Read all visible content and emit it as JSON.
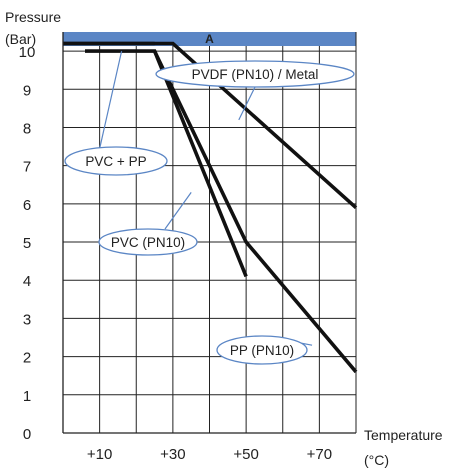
{
  "chart_data": {
    "type": "line",
    "title": "",
    "header_band_label": "A",
    "ylabel_line1": "Pressure",
    "ylabel_line2": "(Bar)",
    "xlabel_line1": "Temperature",
    "xlabel_line2": "(°C)",
    "xlim": [
      0,
      80
    ],
    "ylim": [
      0,
      10.5
    ],
    "x_ticks": [
      10,
      20,
      30,
      40,
      50,
      60,
      70
    ],
    "x_tick_labels": [
      "+10",
      "",
      "+30",
      "",
      "+50",
      "",
      "+70"
    ],
    "y_ticks": [
      0,
      1,
      2,
      3,
      4,
      5,
      6,
      7,
      8,
      9,
      10
    ],
    "y_tick_labels": [
      "0",
      "1",
      "2",
      "3",
      "4",
      "5",
      "6",
      "7",
      "8",
      "9",
      "10"
    ],
    "grid": true,
    "colors": {
      "band": "#5b86c5",
      "callout": "#5b86c5",
      "line": "#111111"
    },
    "series": [
      {
        "name": "PVDF (PN10) / Metal",
        "points": [
          [
            0,
            10.2
          ],
          [
            30,
            10.2
          ],
          [
            80,
            5.9
          ]
        ]
      },
      {
        "name": "PVC + PP",
        "points": [
          [
            0,
            10.2
          ],
          [
            25,
            10.2
          ]
        ]
      },
      {
        "name": "PVC (PN10)",
        "points": [
          [
            6,
            10
          ],
          [
            25,
            10
          ],
          [
            50,
            4.1
          ]
        ]
      },
      {
        "name": "PP (PN10)",
        "points": [
          [
            25,
            10
          ],
          [
            50,
            5
          ],
          [
            80,
            1.6
          ]
        ]
      }
    ],
    "callouts": [
      {
        "label": "PVDF (PN10) / Metal",
        "pointer": [
          48,
          8.2
        ]
      },
      {
        "label": "PVC + PP",
        "pointer": [
          16,
          10
        ]
      },
      {
        "label": "PVC (PN10)",
        "pointer": [
          35,
          6.3
        ]
      },
      {
        "label": "PP (PN10)",
        "pointer": [
          68,
          2.3
        ]
      }
    ]
  }
}
